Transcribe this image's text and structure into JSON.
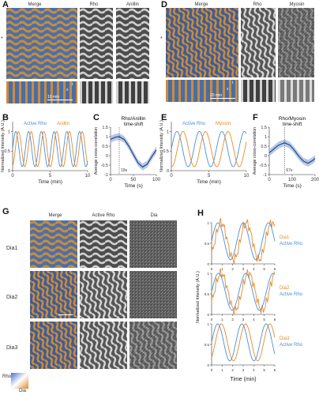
{
  "panelA": {
    "letter": "A",
    "cols": [
      "Merge",
      "Rho",
      "Anillin"
    ],
    "marker": "*",
    "kymo_t": "t",
    "kymo_x": "x",
    "scale": "10 min"
  },
  "panelD": {
    "letter": "D",
    "cols": [
      "Merge",
      "Rho",
      "Myosin"
    ],
    "marker": "*",
    "kymo_t": "t",
    "kymo_x": "x",
    "scale": "20 min"
  },
  "panelG": {
    "letter": "G",
    "cols": [
      "Merge",
      "Active Rho",
      "Dia"
    ],
    "rows": [
      "Dia1",
      "Dia2",
      "Dia3"
    ],
    "colorbar_top": "Rho",
    "colorbar_bottom": "Dia"
  },
  "colors": {
    "blue": "#4a8fd8",
    "orange": "#e8892a",
    "navy": "#1d3e7a",
    "shade": "#9db7e0"
  },
  "chart_data": [
    {
      "id": "B",
      "letter": "B",
      "type": "line",
      "xlabel": "Time (min)",
      "ylabel": "Normalized Intensity (A.U.)",
      "xlim": [
        0,
        10
      ],
      "ylim": [
        0,
        1.25
      ],
      "xticks": [
        0,
        5,
        10
      ],
      "yticks": [
        0,
        0.5,
        1.0
      ],
      "series": [
        {
          "name": "Active Rho",
          "color": "#4a8fd8",
          "period": 1.7,
          "phase": 0
        },
        {
          "name": "Anillin",
          "color": "#e8892a",
          "period": 1.7,
          "phase": 0.35
        }
      ]
    },
    {
      "id": "C",
      "letter": "C",
      "type": "line",
      "title": "Rho/Anillin",
      "subtitle": "time-shift",
      "xlabel": "Time (s)",
      "ylabel": "Average cross-correlation",
      "xlim": [
        0,
        100
      ],
      "ylim": [
        -1,
        1.5
      ],
      "xticks": [
        0,
        50,
        100
      ],
      "yticks": [
        -1.0,
        -0.5,
        0,
        0.5,
        1.0,
        1.5
      ],
      "annotation": "19s",
      "peak_x": 19,
      "x": [
        0,
        10,
        19,
        30,
        40,
        50,
        60,
        70,
        80,
        90,
        100
      ],
      "values": [
        0.86,
        0.97,
        1.0,
        0.85,
        0.5,
        0.05,
        -0.38,
        -0.6,
        -0.45,
        -0.05,
        0.3
      ]
    },
    {
      "id": "E",
      "letter": "E",
      "type": "line",
      "xlabel": "Time (min)",
      "ylabel": "Normalized Intensity (A.U.)",
      "xlim": [
        0,
        10
      ],
      "ylim": [
        0,
        1.25
      ],
      "xticks": [
        0,
        5,
        10
      ],
      "yticks": [
        0,
        0.5,
        1.0
      ],
      "series": [
        {
          "name": "Active Rho",
          "color": "#4a8fd8",
          "period": 3.0,
          "phase": 0
        },
        {
          "name": "Myosin",
          "color": "#e8892a",
          "period": 3.0,
          "phase": 0.8
        }
      ]
    },
    {
      "id": "F",
      "letter": "F",
      "type": "line",
      "title": "Rho/Myosin",
      "subtitle": "time-shift",
      "xlabel": "Time (s)",
      "ylabel": "Average cross-correlation",
      "xlim": [
        0,
        200
      ],
      "ylim": [
        -1,
        1.5
      ],
      "xticks": [
        0,
        100,
        200
      ],
      "yticks": [
        -1.0,
        -0.5,
        0,
        0.5,
        1.0,
        1.5
      ],
      "annotation": "67s",
      "peak_x": 67,
      "x": [
        0,
        20,
        40,
        67,
        90,
        110,
        130,
        150,
        170,
        190,
        200
      ],
      "values": [
        0.15,
        0.35,
        0.55,
        0.68,
        0.55,
        0.28,
        -0.05,
        -0.3,
        -0.4,
        -0.25,
        -0.15
      ]
    },
    {
      "id": "H",
      "letter": "H",
      "type": "line",
      "xlabel": "Time (min)",
      "ylabel": "Normalized Intensity (A.U.)",
      "xlim": [
        0,
        6
      ],
      "ylim": [
        0,
        1.0
      ],
      "xticks": [
        0,
        1,
        2,
        3,
        4,
        5,
        6
      ],
      "yticks": [
        0,
        0.5,
        1.0
      ],
      "subplots": [
        {
          "series": [
            {
              "name": "Dia1",
              "color": "#e8892a",
              "period": 2.4,
              "phase": 0.3,
              "noise": true
            },
            {
              "name": "Active Rho",
              "color": "#4a8fd8",
              "period": 2.4,
              "phase": 0
            }
          ]
        },
        {
          "series": [
            {
              "name": "Dia2",
              "color": "#e8892a",
              "period": 2.6,
              "phase": 0.25,
              "noise": true
            },
            {
              "name": "Active Rho",
              "color": "#4a8fd8",
              "period": 2.6,
              "phase": 0
            }
          ]
        },
        {
          "series": [
            {
              "name": "Dia3",
              "color": "#e8892a",
              "period": 2.3,
              "phase": 0.35,
              "noise": false
            },
            {
              "name": "Active Rho",
              "color": "#4a8fd8",
              "period": 2.3,
              "phase": 0
            }
          ]
        }
      ]
    }
  ]
}
